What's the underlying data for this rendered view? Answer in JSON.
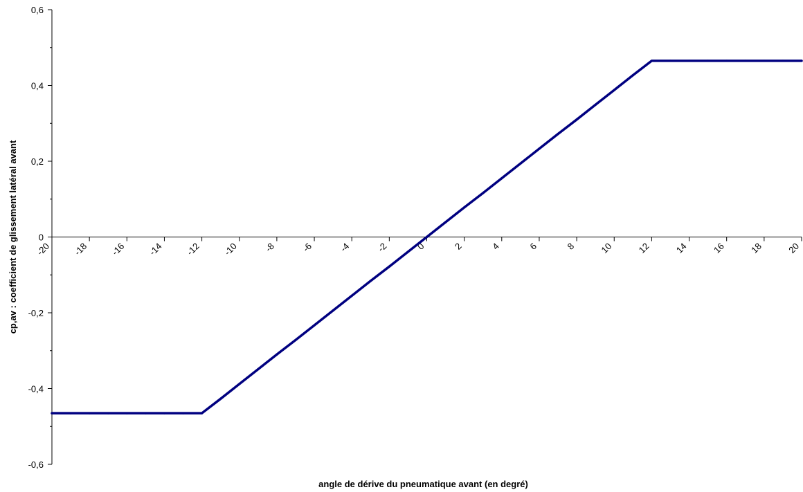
{
  "chart_data": {
    "type": "line",
    "title": "",
    "xlabel": "angle de dérive du pneumatique avant (en degré)",
    "ylabel": "cp,av : coefficient de glissement latéral avant",
    "xlim": [
      -20,
      20
    ],
    "ylim": [
      -0.6,
      0.6
    ],
    "x_ticks": [
      -20,
      -18,
      -16,
      -14,
      -12,
      -10,
      -8,
      -6,
      -4,
      -2,
      0,
      2,
      4,
      6,
      8,
      10,
      12,
      14,
      16,
      18,
      20
    ],
    "x_tick_labels": [
      "-20",
      "-18",
      "-16",
      "-14",
      "-12",
      "-10",
      "-8",
      "-6",
      "-4",
      "-2",
      "0",
      "2",
      "4",
      "6",
      "8",
      "10",
      "12",
      "14",
      "16",
      "18",
      "20"
    ],
    "y_ticks": [
      -0.6,
      -0.4,
      -0.2,
      0,
      0.2,
      0.4,
      0.6
    ],
    "y_tick_labels": [
      "-0,6",
      "-0,4",
      "-0,2",
      "0",
      "0,2",
      "0,4",
      "0,6"
    ],
    "grid": false,
    "legend": "none",
    "series": [
      {
        "color": "#000080",
        "x": [
          -20,
          -19,
          -18,
          -17,
          -16,
          -15,
          -14,
          -13,
          -12,
          -11,
          -10,
          -9,
          -8,
          -7,
          -6,
          -5,
          -4,
          -3,
          -2,
          -1,
          0,
          1,
          2,
          3,
          4,
          5,
          6,
          7,
          8,
          9,
          10,
          11,
          12,
          13,
          14,
          15,
          16,
          17,
          18,
          19,
          20
        ],
        "y": [
          -0.465,
          -0.465,
          -0.465,
          -0.465,
          -0.465,
          -0.465,
          -0.465,
          -0.465,
          -0.465,
          -0.427,
          -0.388,
          -0.349,
          -0.31,
          -0.272,
          -0.233,
          -0.194,
          -0.155,
          -0.116,
          -0.078,
          -0.039,
          0.0,
          0.039,
          0.078,
          0.116,
          0.155,
          0.194,
          0.233,
          0.272,
          0.31,
          0.349,
          0.388,
          0.427,
          0.465,
          0.465,
          0.465,
          0.465,
          0.465,
          0.465,
          0.465,
          0.465,
          0.465
        ]
      }
    ]
  }
}
